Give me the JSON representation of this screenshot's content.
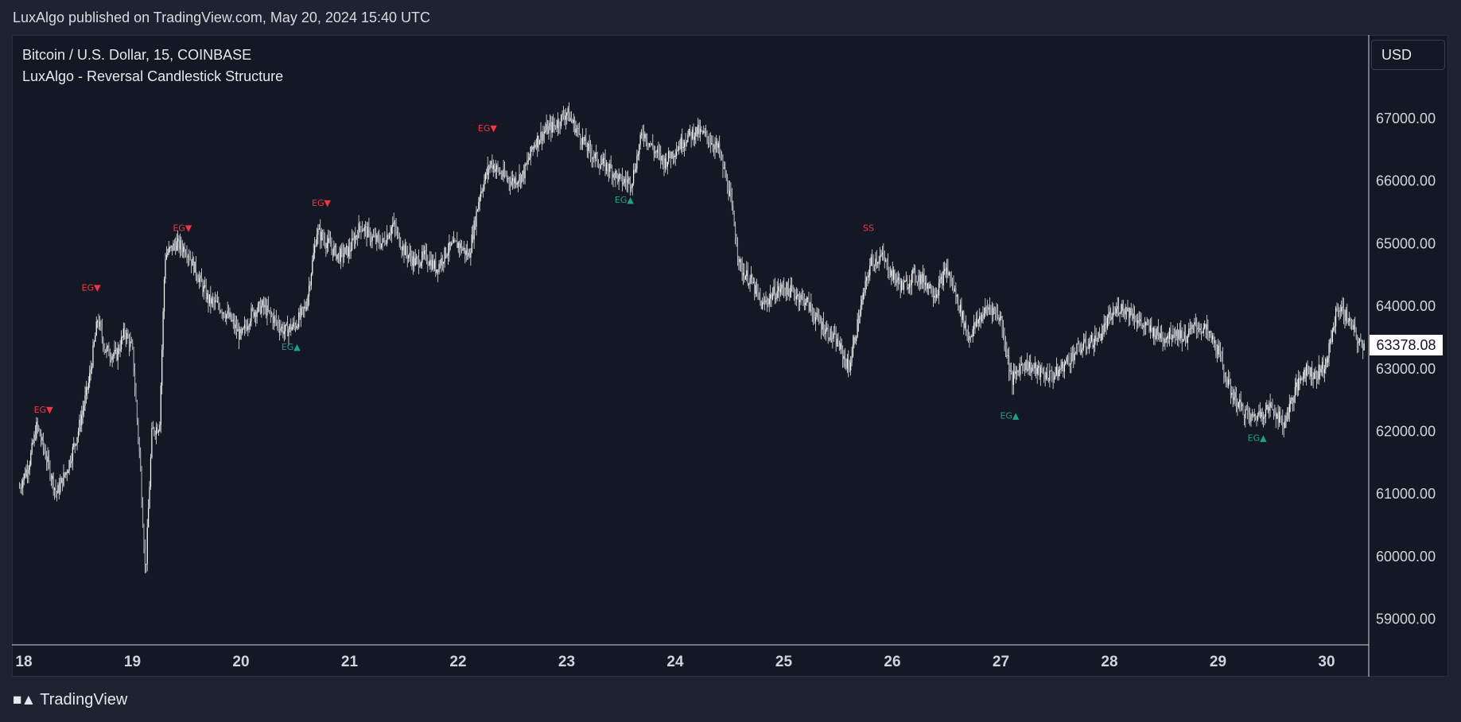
{
  "header": {
    "published": "LuxAlgo published on TradingView.com, May 20, 2024 15:40 UTC"
  },
  "legend": {
    "symbol": "Bitcoin / U.S. Dollar, 15, COINBASE",
    "indicator": "LuxAlgo - Reversal Candlestick Structure"
  },
  "currency_button": "USD",
  "footer": {
    "brand": "TradingView",
    "logo_icon": "tradingview-logo-icon"
  },
  "colors": {
    "bull_signal": "#1fa286",
    "bear_signal": "#f23645",
    "candle": "#e8e8e8",
    "background": "#141824"
  },
  "chart_data": {
    "type": "candlestick",
    "xlabel": "",
    "ylabel": "",
    "x_ticks": [
      "18",
      "19",
      "20",
      "21",
      "22",
      "23",
      "24",
      "25",
      "26",
      "27",
      "28",
      "29",
      "30"
    ],
    "x_range": [
      17.96,
      30.35
    ],
    "y_ticks": [
      "59000.00",
      "60000.00",
      "61000.00",
      "62000.00",
      "63000.00",
      "64000.00",
      "65000.00",
      "66000.00",
      "67000.00"
    ],
    "ylim": [
      58600,
      67750
    ],
    "last_price": "63378.08",
    "price_path": [
      [
        17.96,
        61100
      ],
      [
        18.05,
        61500
      ],
      [
        18.12,
        62100
      ],
      [
        18.22,
        61500
      ],
      [
        18.3,
        61000
      ],
      [
        18.4,
        61400
      ],
      [
        18.5,
        62000
      ],
      [
        18.6,
        62800
      ],
      [
        18.68,
        63800
      ],
      [
        18.75,
        63300
      ],
      [
        18.85,
        63200
      ],
      [
        18.93,
        63600
      ],
      [
        19.0,
        63300
      ],
      [
        19.07,
        61500
      ],
      [
        19.12,
        59700
      ],
      [
        19.18,
        62000
      ],
      [
        19.25,
        62100
      ],
      [
        19.3,
        64800
      ],
      [
        19.4,
        65000
      ],
      [
        19.5,
        64900
      ],
      [
        19.6,
        64500
      ],
      [
        19.7,
        64100
      ],
      [
        19.8,
        64000
      ],
      [
        19.9,
        63800
      ],
      [
        20.0,
        63500
      ],
      [
        20.1,
        63900
      ],
      [
        20.2,
        64000
      ],
      [
        20.3,
        63800
      ],
      [
        20.4,
        63600
      ],
      [
        20.5,
        63700
      ],
      [
        20.6,
        64000
      ],
      [
        20.7,
        65200
      ],
      [
        20.8,
        65000
      ],
      [
        20.9,
        64800
      ],
      [
        21.0,
        64900
      ],
      [
        21.1,
        65300
      ],
      [
        21.2,
        65100
      ],
      [
        21.3,
        65000
      ],
      [
        21.4,
        65300
      ],
      [
        21.5,
        64900
      ],
      [
        21.6,
        64700
      ],
      [
        21.7,
        64800
      ],
      [
        21.8,
        64600
      ],
      [
        21.9,
        64900
      ],
      [
        22.0,
        65000
      ],
      [
        22.1,
        64800
      ],
      [
        22.2,
        65800
      ],
      [
        22.3,
        66300
      ],
      [
        22.4,
        66100
      ],
      [
        22.5,
        66000
      ],
      [
        22.6,
        66100
      ],
      [
        22.7,
        66600
      ],
      [
        22.8,
        66800
      ],
      [
        22.9,
        66900
      ],
      [
        23.0,
        67100
      ],
      [
        23.1,
        66800
      ],
      [
        23.2,
        66500
      ],
      [
        23.3,
        66300
      ],
      [
        23.4,
        66200
      ],
      [
        23.5,
        66000
      ],
      [
        23.6,
        66000
      ],
      [
        23.7,
        66800
      ],
      [
        23.8,
        66500
      ],
      [
        23.9,
        66300
      ],
      [
        24.0,
        66500
      ],
      [
        24.1,
        66700
      ],
      [
        24.2,
        66800
      ],
      [
        24.3,
        66700
      ],
      [
        24.4,
        66500
      ],
      [
        24.5,
        65800
      ],
      [
        24.6,
        64600
      ],
      [
        24.7,
        64400
      ],
      [
        24.8,
        64000
      ],
      [
        24.9,
        64200
      ],
      [
        25.0,
        64300
      ],
      [
        25.1,
        64200
      ],
      [
        25.2,
        64100
      ],
      [
        25.3,
        63800
      ],
      [
        25.4,
        63600
      ],
      [
        25.5,
        63400
      ],
      [
        25.6,
        63000
      ],
      [
        25.7,
        63900
      ],
      [
        25.8,
        64700
      ],
      [
        25.9,
        64800
      ],
      [
        26.0,
        64500
      ],
      [
        26.1,
        64300
      ],
      [
        26.2,
        64500
      ],
      [
        26.3,
        64400
      ],
      [
        26.4,
        64200
      ],
      [
        26.5,
        64600
      ],
      [
        26.6,
        64100
      ],
      [
        26.7,
        63500
      ],
      [
        26.8,
        63800
      ],
      [
        26.9,
        64000
      ],
      [
        27.0,
        63800
      ],
      [
        27.1,
        62800
      ],
      [
        27.2,
        63100
      ],
      [
        27.3,
        63000
      ],
      [
        27.4,
        62900
      ],
      [
        27.5,
        62900
      ],
      [
        27.6,
        63100
      ],
      [
        27.7,
        63300
      ],
      [
        27.8,
        63400
      ],
      [
        27.9,
        63500
      ],
      [
        28.0,
        63800
      ],
      [
        28.1,
        64000
      ],
      [
        28.2,
        63900
      ],
      [
        28.3,
        63700
      ],
      [
        28.4,
        63600
      ],
      [
        28.5,
        63500
      ],
      [
        28.6,
        63600
      ],
      [
        28.7,
        63500
      ],
      [
        28.8,
        63700
      ],
      [
        28.9,
        63600
      ],
      [
        29.0,
        63300
      ],
      [
        29.1,
        62700
      ],
      [
        29.2,
        62400
      ],
      [
        29.3,
        62200
      ],
      [
        29.4,
        62300
      ],
      [
        29.5,
        62400
      ],
      [
        29.6,
        62100
      ],
      [
        29.7,
        62600
      ],
      [
        29.8,
        63000
      ],
      [
        29.9,
        62900
      ],
      [
        30.0,
        63100
      ],
      [
        30.1,
        64000
      ],
      [
        30.2,
        63800
      ],
      [
        30.3,
        63400
      ],
      [
        30.35,
        63378
      ]
    ],
    "annotations": [
      {
        "label": "EG▼",
        "x": 18.18,
        "y": 62300,
        "color": "bear"
      },
      {
        "label": "EG▼",
        "x": 18.62,
        "y": 64250,
        "color": "bear"
      },
      {
        "label": "EG▼",
        "x": 19.46,
        "y": 65200,
        "color": "bear"
      },
      {
        "label": "EG▲",
        "x": 20.46,
        "y": 63300,
        "color": "bull"
      },
      {
        "label": "EG▼",
        "x": 20.74,
        "y": 65600,
        "color": "bear"
      },
      {
        "label": "EG▼",
        "x": 22.27,
        "y": 66800,
        "color": "bear"
      },
      {
        "label": "EG▲",
        "x": 23.53,
        "y": 65650,
        "color": "bull"
      },
      {
        "label": "SS",
        "x": 25.78,
        "y": 65200,
        "color": "bear"
      },
      {
        "label": "EG▲",
        "x": 27.08,
        "y": 62200,
        "color": "bull"
      },
      {
        "label": "EG▲",
        "x": 29.36,
        "y": 61850,
        "color": "bull"
      }
    ]
  }
}
